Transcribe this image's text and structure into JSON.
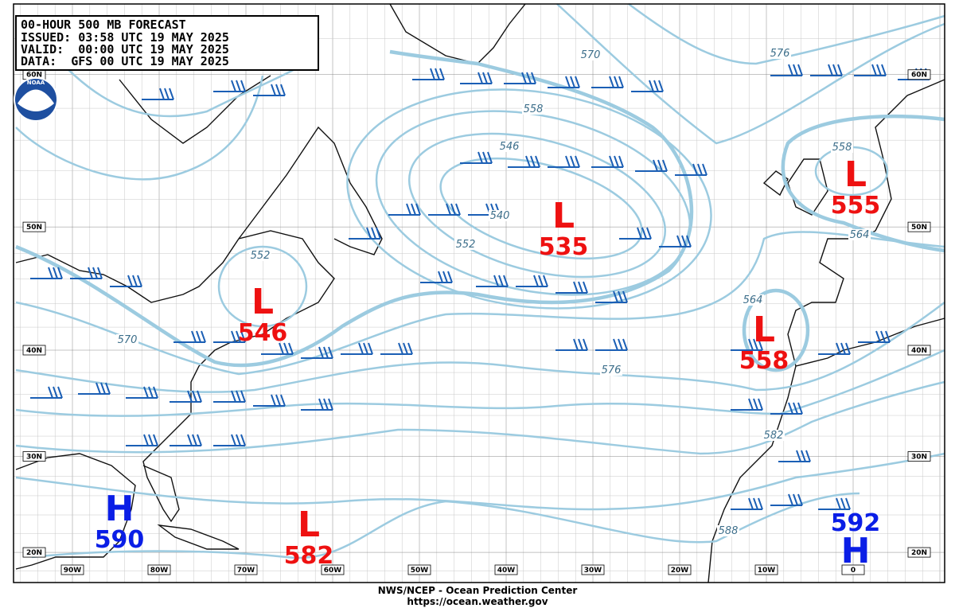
{
  "header": {
    "title": "00-HOUR 500 MB FORECAST",
    "issued": "ISSUED: 03:58 UTC 19 MAY 2025",
    "valid": "VALID:  00:00 UTC 19 MAY 2025",
    "data": "DATA:  GFS 00 UTC 19 MAY 2025"
  },
  "logo": "NOAA",
  "centers": [
    {
      "symbol": "L",
      "value": 535
    },
    {
      "symbol": "L",
      "value": 546
    },
    {
      "symbol": "L",
      "value": 555
    },
    {
      "symbol": "L",
      "value": 558
    },
    {
      "symbol": "H",
      "value": 590
    },
    {
      "symbol": "L",
      "value": 582
    },
    {
      "symbol": "H",
      "value": 592
    }
  ],
  "contour_labels": [
    570,
    576,
    558,
    546,
    540,
    552,
    552,
    570,
    576,
    564,
    558,
    564,
    582,
    588
  ],
  "lat_labels": [
    "60N",
    "50N",
    "40N",
    "30N",
    "20N"
  ],
  "lon_labels": [
    "90W",
    "80W",
    "70W",
    "60W",
    "50W",
    "40W",
    "30W",
    "20W",
    "10W",
    "0"
  ],
  "footer": {
    "line1": "NWS/NCEP - Ocean Prediction Center",
    "line2": "https://ocean.weather.gov"
  }
}
